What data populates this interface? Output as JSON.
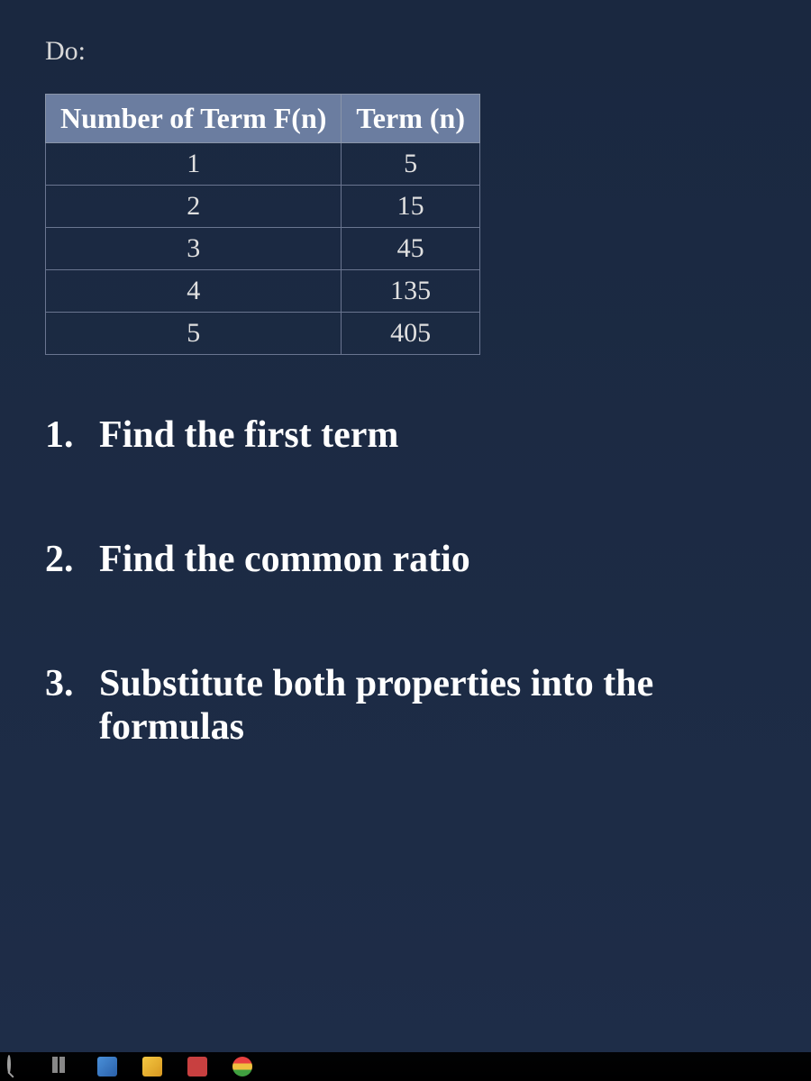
{
  "partial_header": "Do:",
  "table": {
    "columns": [
      "Number of Term  F(n)",
      "Term (n)"
    ],
    "rows": [
      [
        "1",
        "5"
      ],
      [
        "2",
        "15"
      ],
      [
        "3",
        "45"
      ],
      [
        "4",
        "135"
      ],
      [
        "5",
        "405"
      ]
    ],
    "header_bg": "#6b7da0",
    "header_text_color": "#ffffff",
    "cell_text_color": "#e0e0e0",
    "border_color": "#6a7590"
  },
  "steps": [
    "Find the first term",
    "Find the common ratio",
    "Substitute both properties into the formulas"
  ],
  "styling": {
    "background_gradient_top": "#1a2840",
    "background_gradient_bottom": "#1e2d48",
    "text_color": "#e8e8e8",
    "step_text_color": "#ffffff",
    "step_font_size_pt": 32,
    "table_font_size_pt": 22,
    "font_family": "Times New Roman"
  },
  "taskbar": {
    "background": "#000000",
    "icons": [
      "search",
      "task-view",
      "paint3d",
      "explorer",
      "store",
      "chrome"
    ]
  }
}
